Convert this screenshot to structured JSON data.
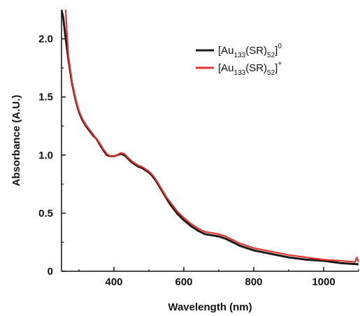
{
  "chart_data": {
    "type": "line",
    "xlabel": "Wavelength (nm)",
    "ylabel": "Absorbance (A.U.)",
    "xlim": [
      250,
      1100
    ],
    "ylim": [
      0,
      2.25
    ],
    "xticks": [
      400,
      600,
      800,
      1000
    ],
    "yticks": [
      0,
      0.5,
      1.0,
      1.5,
      2.0
    ],
    "ytick_labels": [
      "0",
      "0.5",
      "1.0",
      "1.5",
      "2.0"
    ],
    "grid": false,
    "legend_position": "top-right",
    "series": [
      {
        "name": "[Au133(SR)52]0",
        "legend_main": "[Au",
        "legend_sub1": "133",
        "legend_mid": "(SR)",
        "legend_sub2": "52",
        "legend_close": "]",
        "legend_sup": "0",
        "color": "#1a1a1a",
        "x": [
          250,
          255,
          260,
          270,
          280,
          290,
          300,
          310,
          320,
          330,
          340,
          350,
          360,
          370,
          380,
          390,
          400,
          410,
          420,
          430,
          440,
          450,
          460,
          470,
          480,
          490,
          500,
          510,
          520,
          530,
          540,
          550,
          560,
          570,
          580,
          590,
          600,
          620,
          640,
          660,
          680,
          700,
          720,
          740,
          760,
          780,
          800,
          850,
          900,
          950,
          1000,
          1050,
          1100
        ],
        "y": [
          2.25,
          2.18,
          2.05,
          1.82,
          1.62,
          1.48,
          1.37,
          1.3,
          1.25,
          1.21,
          1.17,
          1.14,
          1.09,
          1.04,
          1.0,
          0.99,
          0.99,
          1.0,
          1.01,
          1.0,
          0.97,
          0.94,
          0.92,
          0.9,
          0.89,
          0.87,
          0.85,
          0.82,
          0.78,
          0.73,
          0.68,
          0.63,
          0.58,
          0.54,
          0.5,
          0.47,
          0.44,
          0.39,
          0.35,
          0.32,
          0.31,
          0.3,
          0.28,
          0.25,
          0.22,
          0.2,
          0.18,
          0.15,
          0.12,
          0.1,
          0.09,
          0.07,
          0.06
        ]
      },
      {
        "name": "[Au133(SR)52]+",
        "legend_main": "[Au",
        "legend_sub1": "133",
        "legend_mid": "(SR)",
        "legend_sub2": "52",
        "legend_close": "]",
        "legend_sup": "+",
        "color": "#e8332d",
        "x": [
          262,
          265,
          270,
          280,
          290,
          300,
          310,
          320,
          330,
          340,
          350,
          360,
          370,
          380,
          390,
          400,
          410,
          420,
          430,
          440,
          450,
          460,
          470,
          480,
          490,
          500,
          510,
          520,
          530,
          540,
          550,
          560,
          570,
          580,
          590,
          600,
          620,
          640,
          660,
          680,
          700,
          720,
          740,
          760,
          780,
          800,
          850,
          900,
          950,
          1000,
          1050,
          1090,
          1095,
          1100
        ],
        "y": [
          2.25,
          2.08,
          1.85,
          1.63,
          1.49,
          1.38,
          1.31,
          1.26,
          1.22,
          1.18,
          1.14,
          1.1,
          1.05,
          1.01,
          0.99,
          0.99,
          1.0,
          1.02,
          1.01,
          0.98,
          0.95,
          0.93,
          0.91,
          0.9,
          0.88,
          0.86,
          0.83,
          0.79,
          0.74,
          0.69,
          0.64,
          0.6,
          0.56,
          0.52,
          0.49,
          0.46,
          0.41,
          0.37,
          0.34,
          0.33,
          0.32,
          0.3,
          0.27,
          0.24,
          0.22,
          0.2,
          0.17,
          0.14,
          0.12,
          0.1,
          0.09,
          0.08,
          0.12,
          0.08
        ]
      }
    ]
  }
}
